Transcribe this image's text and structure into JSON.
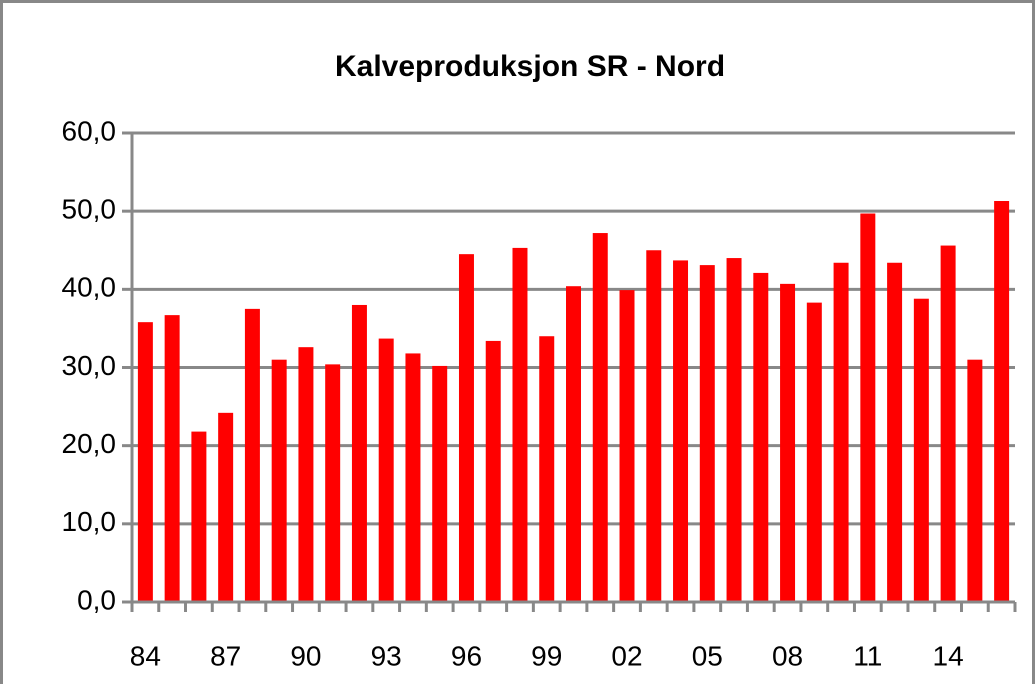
{
  "chart_data": {
    "type": "bar",
    "title": "Kalveproduksjon SR - Nord",
    "categories": [
      "84",
      null,
      null,
      "87",
      null,
      null,
      "90",
      null,
      null,
      "93",
      null,
      null,
      "96",
      null,
      null,
      "99",
      null,
      null,
      "02",
      null,
      null,
      "05",
      null,
      null,
      "08",
      null,
      null,
      "11",
      null,
      null,
      "14",
      null,
      null
    ],
    "values": [
      35.8,
      36.7,
      21.8,
      24.2,
      37.5,
      31.0,
      32.6,
      30.4,
      38.0,
      33.7,
      31.8,
      30.2,
      44.5,
      33.4,
      45.3,
      34.0,
      40.4,
      47.2,
      39.9,
      45.0,
      43.7,
      43.1,
      44.0,
      42.1,
      40.7,
      38.3,
      43.4,
      49.7,
      43.4,
      38.8,
      45.6,
      31.0,
      51.3
    ],
    "color": "#ff0000",
    "ylim": [
      0,
      60
    ],
    "yticks": [
      {
        "value": 0,
        "label": "0,0"
      },
      {
        "value": 10,
        "label": "10,0"
      },
      {
        "value": 20,
        "label": "20,0"
      },
      {
        "value": 30,
        "label": "30,0"
      },
      {
        "value": 40,
        "label": "40,0"
      },
      {
        "value": 50,
        "label": "50,0"
      },
      {
        "value": 60,
        "label": "60,0"
      }
    ],
    "grid": true
  }
}
